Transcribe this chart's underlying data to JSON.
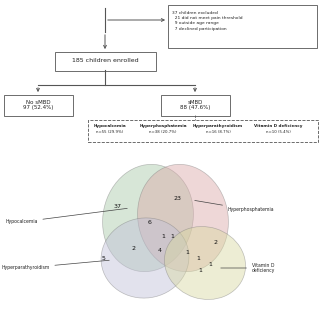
{
  "excluded_text": "37 children excluded\n  21 did not meet pain threshold\n  9 outside age range\n  7 declined participation",
  "enrolled_text": "185 children enrolled",
  "no_smbd_text": "No sMBD\n97 (52.4%)",
  "smbd_text": "sMBD\n88 (47.6%)",
  "subcategories": [
    {
      "label": "Hypocalcemia",
      "n": "n=55 (29.9%)"
    },
    {
      "label": "Hyperphosphatemia",
      "n": "n=38 (20.7%)"
    },
    {
      "label": "Hyperparathyroidism",
      "n": "n=16 (8.7%)"
    },
    {
      "label": "Vitamin D deficiency",
      "n": "n=10 (5.4%)"
    }
  ],
  "venn_colors": {
    "hypocalcemia": "#a8c8a8",
    "hyperphosphatemia": "#dba8a8",
    "hyperparathyroidism": "#c0c0d8",
    "vitamin_d": "#d8d8a0"
  },
  "venn_numbers": [
    [
      118,
      207,
      "37"
    ],
    [
      178,
      198,
      "23"
    ],
    [
      150,
      222,
      "6"
    ],
    [
      160,
      250,
      "4"
    ],
    [
      215,
      243,
      "2"
    ],
    [
      104,
      258,
      "5"
    ],
    [
      133,
      248,
      "2"
    ],
    [
      163,
      237,
      "1"
    ],
    [
      172,
      237,
      "1"
    ],
    [
      187,
      252,
      "1"
    ],
    [
      198,
      258,
      "1"
    ],
    [
      210,
      265,
      "1"
    ],
    [
      200,
      270,
      "1"
    ]
  ],
  "bg_color": "#ffffff",
  "box_edge_color": "#555555",
  "text_color": "#222222",
  "line_color": "#555555"
}
